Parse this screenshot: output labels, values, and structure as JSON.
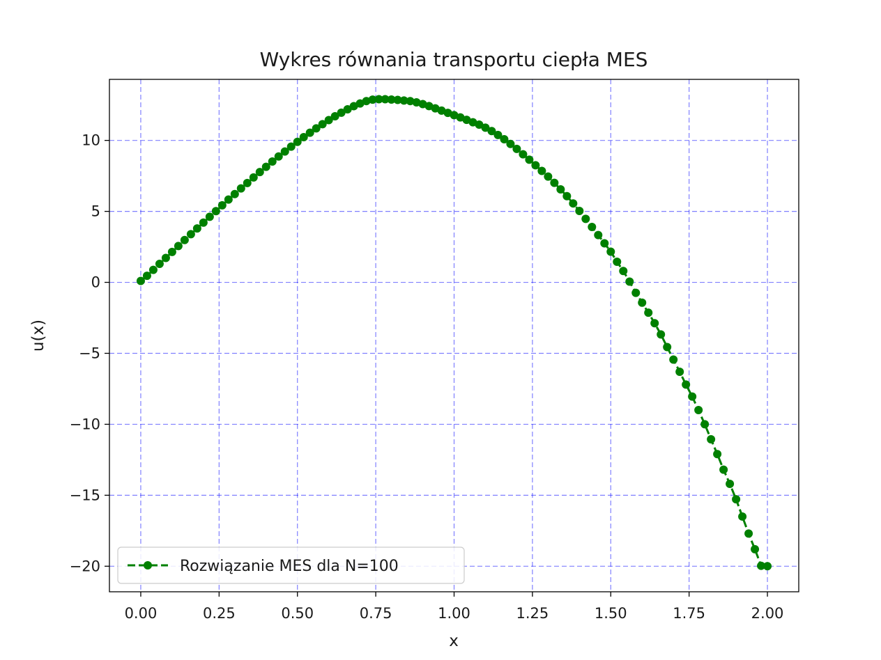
{
  "chart_data": {
    "type": "line",
    "title": "Wykres równania transportu ciepła MES",
    "xlabel": "x",
    "ylabel": "u(x)",
    "xlim": [
      -0.1,
      2.1
    ],
    "ylim": [
      -21.8,
      14.3
    ],
    "xticks": [
      0.0,
      0.25,
      0.5,
      0.75,
      1.0,
      1.25,
      1.5,
      1.75,
      2.0
    ],
    "xtick_labels": [
      "0.00",
      "0.25",
      "0.50",
      "0.75",
      "1.00",
      "1.25",
      "1.50",
      "1.75",
      "2.00"
    ],
    "yticks": [
      10,
      5,
      0,
      -5,
      -10,
      -15,
      -20
    ],
    "ytick_labels": [
      "10",
      "5",
      "0",
      "−5",
      "−10",
      "−15",
      "−20"
    ],
    "grid": true,
    "grid_color": "#0000ff",
    "grid_style": "dashed",
    "legend_position": "lower-left",
    "series": [
      {
        "name": "Rozwiązanie MES dla N=100",
        "color": "#008000",
        "line_style": "dashed",
        "marker": "circle",
        "x": [
          0.0,
          0.02,
          0.04,
          0.06,
          0.08,
          0.1,
          0.12,
          0.14,
          0.16,
          0.18,
          0.2,
          0.22,
          0.24,
          0.26,
          0.28,
          0.3,
          0.32,
          0.34,
          0.36,
          0.38,
          0.4,
          0.42,
          0.44,
          0.46,
          0.48,
          0.5,
          0.52,
          0.54,
          0.56,
          0.58,
          0.6,
          0.62,
          0.64,
          0.66,
          0.68,
          0.7,
          0.72,
          0.74,
          0.76,
          0.78,
          0.8,
          0.82,
          0.84,
          0.86,
          0.88,
          0.9,
          0.92,
          0.94,
          0.96,
          0.98,
          1.0,
          1.02,
          1.04,
          1.06,
          1.08,
          1.1,
          1.12,
          1.14,
          1.16,
          1.18,
          1.2,
          1.22,
          1.24,
          1.26,
          1.28,
          1.3,
          1.32,
          1.34,
          1.36,
          1.38,
          1.4,
          1.42,
          1.44,
          1.46,
          1.48,
          1.5,
          1.52,
          1.54,
          1.56,
          1.58,
          1.6,
          1.62,
          1.64,
          1.66,
          1.68,
          1.7,
          1.72,
          1.74,
          1.76,
          1.78,
          1.8,
          1.82,
          1.84,
          1.86,
          1.88,
          1.9,
          1.92,
          1.94,
          1.96,
          1.98,
          2.0
        ],
        "y": [
          0.1,
          0.46,
          0.88,
          1.3,
          1.72,
          2.14,
          2.56,
          2.98,
          3.39,
          3.8,
          4.21,
          4.62,
          5.02,
          5.43,
          5.83,
          6.22,
          6.62,
          7.0,
          7.39,
          7.77,
          8.14,
          8.51,
          8.87,
          9.22,
          9.56,
          9.9,
          10.23,
          10.54,
          10.85,
          11.14,
          11.43,
          11.7,
          11.95,
          12.19,
          12.41,
          12.6,
          12.77,
          12.87,
          12.9,
          12.9,
          12.88,
          12.85,
          12.81,
          12.77,
          12.68,
          12.56,
          12.42,
          12.26,
          12.1,
          11.94,
          11.78,
          11.62,
          11.45,
          11.28,
          11.11,
          10.9,
          10.66,
          10.38,
          10.08,
          9.75,
          9.4,
          9.02,
          8.64,
          8.25,
          7.85,
          7.45,
          7.01,
          6.55,
          6.07,
          5.56,
          5.03,
          4.47,
          3.9,
          3.33,
          2.75,
          2.16,
          1.45,
          0.8,
          0.05,
          -0.74,
          -1.43,
          -2.14,
          -2.88,
          -3.67,
          -4.56,
          -5.44,
          -6.3,
          -7.2,
          -8.05,
          -9.0,
          -10.0,
          -11.06,
          -12.1,
          -13.2,
          -14.2,
          -15.28,
          -16.5,
          -17.7,
          -18.8,
          -19.97,
          -20.0
        ]
      }
    ]
  }
}
